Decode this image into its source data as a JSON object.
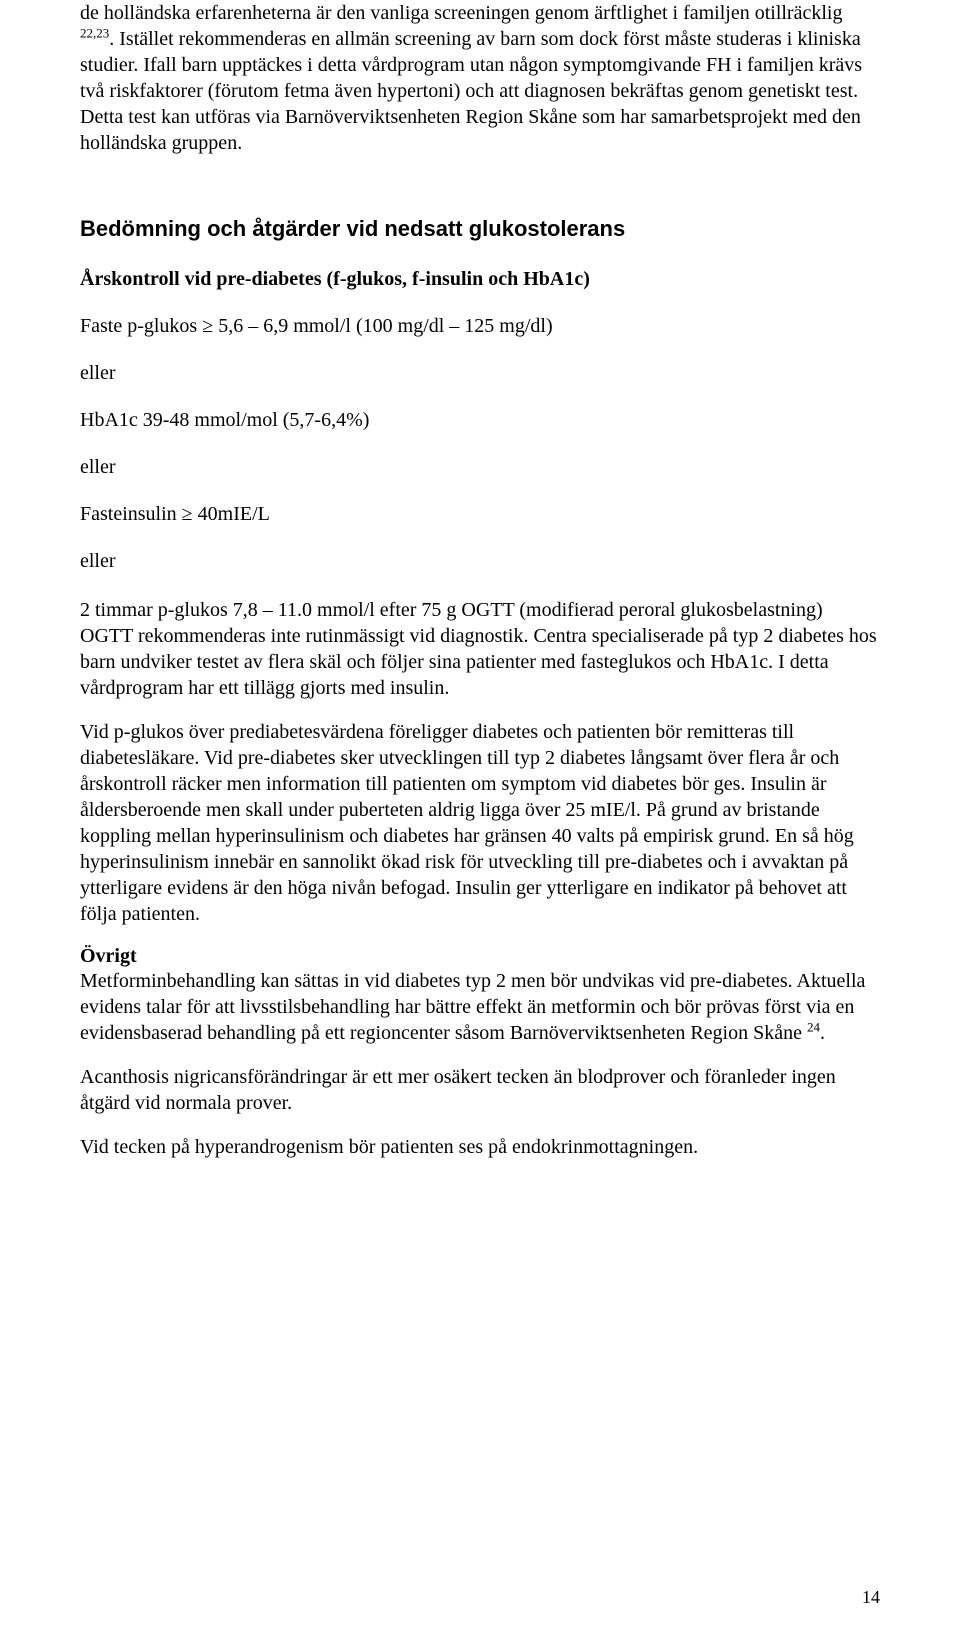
{
  "intro": {
    "p1_part1": "de holländska erfarenheterna är den vanliga screeningen genom ärftlighet i familjen otillräcklig ",
    "p1_ref": "22,23",
    "p1_part2": ". Istället rekommenderas en allmän screening av barn som dock först måste studeras i kliniska studier. Ifall barn upptäckes i detta vårdprogram utan någon symptomgivande FH i familjen krävs två riskfaktorer (förutom fetma även hypertoni) och att diagnosen bekräftas genom genetiskt test. Detta test kan utföras via Barnöverviktsenheten Region Skåne som har samarbetsprojekt med den holländska gruppen."
  },
  "heading1": "Bedömning och åtgärder vid nedsatt glukostolerans",
  "subheading1": "Årskontroll vid pre-diabetes (f-glukos, f-insulin och HbA1c)",
  "criteria": {
    "c1": "Faste p-glukos ≥ 5,6 – 6,9 mmol/l (100 mg/dl – 125 mg/dl)",
    "or1": "eller",
    "c2": "HbA1c 39-48 mmol/mol (5,7-6,4%)",
    "or2": "eller",
    "c3": "Fasteinsulin ≥ 40mIE/L",
    "or3": "eller",
    "c4": "2 timmar p-glukos 7,8 – 11.0 mmol/l efter 75 g OGTT (modifierad peroral glukosbelastning)"
  },
  "p2": "OGTT rekommenderas inte rutinmässigt vid diagnostik. Centra specialiserade på typ 2 diabetes hos barn undviker testet av flera skäl och följer sina patienter med fasteglukos och HbA1c. I detta vårdprogram har ett tillägg gjorts med insulin.",
  "p3": "Vid p-glukos över prediabetesvärdena föreligger diabetes och patienten bör remitteras till diabetesläkare. Vid pre-diabetes sker utvecklingen till typ 2 diabetes långsamt över flera år och årskontroll räcker men information till patienten om symptom vid diabetes bör ges. Insulin är åldersberoende men skall under puberteten aldrig ligga över 25 mIE/l. På grund av bristande koppling mellan hyperinsulinism och diabetes har gränsen 40 valts på empirisk grund. En så hög hyperinsulinism innebär en sannolikt ökad risk för utveckling till pre-diabetes och i avvaktan på ytterligare evidens är den höga nivån befogad. Insulin ger ytterligare en indikator på behovet att följa patienten.",
  "heading2": "Övrigt",
  "p4_part1": "Metforminbehandling kan sättas in vid diabetes typ 2 men bör undvikas vid pre-diabetes. Aktuella evidens talar för att livsstilsbehandling har bättre effekt än metformin och bör prövas först via en evidensbaserad behandling på ett regioncenter såsom Barnöverviktsenheten Region Skåne ",
  "p4_ref": "24",
  "p4_part2": ".",
  "p5": "Acanthosis nigricansförändringar är ett mer osäkert tecken än blodprover och föranleder ingen åtgärd vid normala prover.",
  "p6": "Vid tecken på hyperandrogenism bör patienten ses på endokrinmottagningen.",
  "page_num": "14"
}
